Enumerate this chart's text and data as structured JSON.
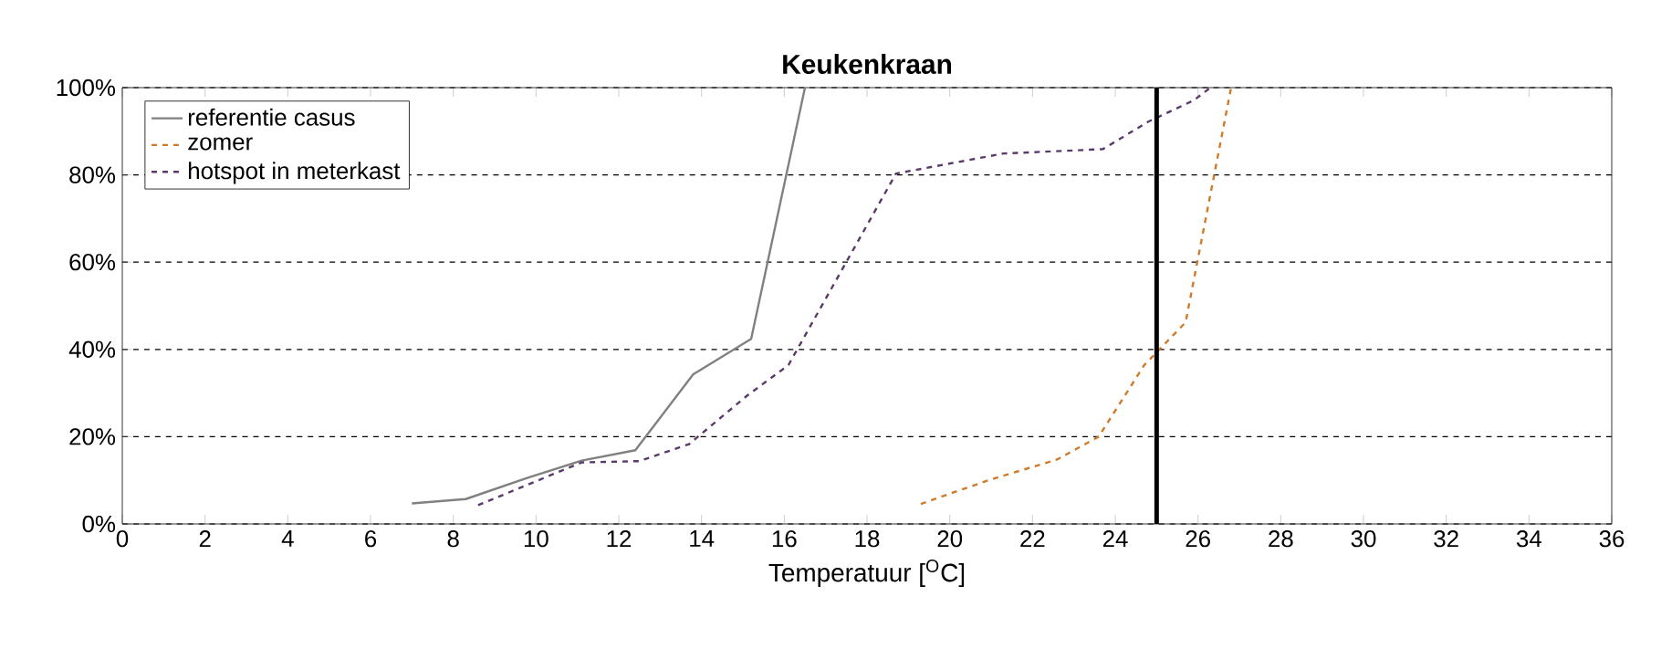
{
  "chart_data": {
    "type": "line",
    "title": "Keukenkraan",
    "xlabel": "Temperatuur [$^{O}$C]",
    "xlim": [
      0,
      36
    ],
    "xticks": [
      0,
      2,
      4,
      6,
      8,
      10,
      12,
      14,
      16,
      18,
      20,
      22,
      24,
      26,
      28,
      30,
      32,
      34,
      36
    ],
    "ylim": [
      0,
      100
    ],
    "yticks": [
      {
        "value": 0,
        "label": "0%"
      },
      {
        "value": 20,
        "label": "20%"
      },
      {
        "value": 40,
        "label": "40%"
      },
      {
        "value": 60,
        "label": "60%"
      },
      {
        "value": 80,
        "label": "80%"
      },
      {
        "value": 100,
        "label": "100%"
      }
    ],
    "grid": "y",
    "legend": "top left",
    "series": [
      {
        "name": "referentie casus",
        "color": "#808080",
        "line_style": "solid",
        "x": [
          7.0,
          8.3,
          9.8,
          11.1,
          12.4,
          13.8,
          15.2,
          16.5
        ],
        "values": [
          4.7,
          5.7,
          10.6,
          14.5,
          16.9,
          34.3,
          42.4,
          100
        ]
      },
      {
        "name": "zomer",
        "color": "#d07a2a",
        "line_style": "dashed",
        "x": [
          19.3,
          20.9,
          22.6,
          23.6,
          24.7,
          25.7,
          26.8
        ],
        "values": [
          4.6,
          9.9,
          14.8,
          20.0,
          36.4,
          46.2,
          100
        ]
      },
      {
        "name": "hotspot in meterkast",
        "color": "#5a3a6a",
        "line_style": "dashed",
        "x": [
          8.6,
          11.1,
          12.5,
          13.7,
          15.1,
          16.1,
          18.7,
          21.3,
          23.7,
          24.8,
          25.9,
          26.3
        ],
        "values": [
          4.3,
          14.1,
          14.4,
          18.3,
          29.4,
          36.4,
          80.3,
          84.9,
          85.9,
          92.2,
          97.1,
          100
        ]
      }
    ],
    "ref_lines": [
      {
        "axis": "x",
        "value": 25,
        "color": "#000000",
        "line_style": "solid"
      }
    ]
  }
}
